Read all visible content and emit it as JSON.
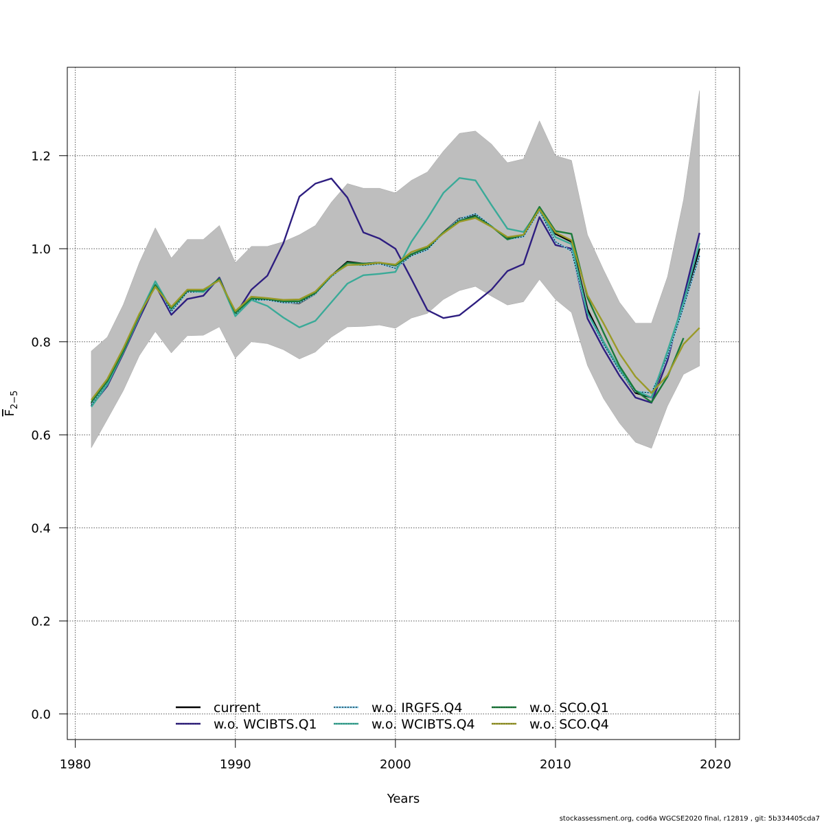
{
  "chart_data": {
    "type": "line",
    "title": "",
    "xlabel": "Years",
    "ylabel": "F̄ 2−5",
    "ylabel_main": "F",
    "ylabel_sub": "2−5",
    "xlim": [
      1979.5,
      2021.5
    ],
    "ylim": [
      -0.055,
      1.39
    ],
    "xticks": [
      1980,
      1990,
      2000,
      2010,
      2020
    ],
    "xtick_labels": [
      "1980",
      "1990",
      "2000",
      "2010",
      "2020"
    ],
    "yticks": [
      0.0,
      0.2,
      0.4,
      0.6,
      0.8,
      1.0,
      1.2
    ],
    "ytick_labels": [
      "0.0",
      "0.2",
      "0.4",
      "0.6",
      "0.8",
      "1.0",
      "1.2"
    ],
    "grid": true,
    "legend_position": "bottom-center",
    "x": [
      1981,
      1982,
      1983,
      1984,
      1985,
      1986,
      1987,
      1988,
      1989,
      1990,
      1991,
      1992,
      1993,
      1994,
      1995,
      1996,
      1997,
      1998,
      1999,
      2000,
      2001,
      2002,
      2003,
      2004,
      2005,
      2006,
      2007,
      2008,
      2009,
      2010,
      2011,
      2012,
      2013,
      2014,
      2015,
      2016,
      2017,
      2018,
      2019
    ],
    "band": {
      "name": "confidence interval (current)",
      "color": "#bebebe",
      "lower": [
        0.572,
        0.633,
        0.695,
        0.77,
        0.822,
        0.776,
        0.813,
        0.814,
        0.832,
        0.765,
        0.8,
        0.796,
        0.783,
        0.763,
        0.778,
        0.81,
        0.832,
        0.833,
        0.836,
        0.829,
        0.851,
        0.861,
        0.891,
        0.91,
        0.919,
        0.898,
        0.879,
        0.886,
        0.934,
        0.891,
        0.863,
        0.749,
        0.678,
        0.625,
        0.584,
        0.571,
        0.662,
        0.73,
        0.748
      ],
      "upper": [
        0.78,
        0.81,
        0.88,
        0.97,
        1.045,
        0.98,
        1.02,
        1.02,
        1.05,
        0.97,
        1.005,
        1.005,
        1.015,
        1.03,
        1.05,
        1.1,
        1.14,
        1.13,
        1.13,
        1.12,
        1.147,
        1.165,
        1.21,
        1.248,
        1.253,
        1.225,
        1.185,
        1.193,
        1.275,
        1.2,
        1.19,
        1.03,
        0.955,
        0.885,
        0.84,
        0.84,
        0.94,
        1.105,
        1.34
      ]
    },
    "series": [
      {
        "name": "current",
        "color": "#000000",
        "dash": "solid",
        "values": [
          0.667,
          0.712,
          0.78,
          0.855,
          0.925,
          0.868,
          0.909,
          0.909,
          0.935,
          0.86,
          0.892,
          0.892,
          0.885,
          0.883,
          0.903,
          0.942,
          0.972,
          0.968,
          0.97,
          0.964,
          0.988,
          1.002,
          1.035,
          1.065,
          1.072,
          1.048,
          1.022,
          1.028,
          1.088,
          1.032,
          1.015,
          0.87,
          0.8,
          0.74,
          0.69,
          0.68,
          0.775,
          0.88,
          1.0
        ]
      },
      {
        "name": "w.o. WCIBTS.Q1",
        "color": "#2e1e80",
        "dash": "solid",
        "values": [
          0.662,
          0.705,
          0.775,
          0.85,
          0.922,
          0.858,
          0.892,
          0.899,
          0.938,
          0.858,
          0.912,
          0.942,
          1.012,
          1.112,
          1.14,
          1.151,
          1.11,
          1.035,
          1.022,
          1.0,
          0.935,
          0.868,
          0.851,
          0.857,
          0.884,
          0.912,
          0.952,
          0.967,
          1.068,
          1.008,
          1.0,
          0.85,
          0.785,
          0.727,
          0.68,
          0.669,
          0.76,
          0.895,
          1.034
        ]
      },
      {
        "name": "w.o. IRGFS.Q4",
        "color": "#7ec8e8",
        "dash": "dotted",
        "values": [
          0.664,
          0.71,
          0.778,
          0.855,
          0.928,
          0.865,
          0.907,
          0.907,
          0.935,
          0.858,
          0.89,
          0.89,
          0.884,
          0.884,
          0.903,
          0.94,
          0.966,
          0.964,
          0.968,
          0.958,
          0.985,
          0.998,
          1.034,
          1.064,
          1.075,
          1.049,
          1.02,
          1.026,
          1.082,
          1.015,
          0.995,
          0.862,
          0.795,
          0.738,
          0.693,
          0.69,
          0.77,
          0.875,
          0.985
        ]
      },
      {
        "name": "w.o. WCIBTS.Q4",
        "color": "#3aaa98",
        "dash": "solid",
        "values": [
          0.66,
          0.708,
          0.778,
          0.858,
          0.93,
          0.87,
          0.91,
          0.907,
          0.935,
          0.855,
          0.89,
          0.877,
          0.852,
          0.831,
          0.845,
          0.885,
          0.925,
          0.943,
          0.946,
          0.95,
          1.015,
          1.065,
          1.12,
          1.152,
          1.147,
          1.094,
          1.043,
          1.036,
          1.085,
          1.025,
          1.01,
          0.862,
          0.8,
          0.742,
          0.695,
          0.68,
          0.78,
          0.885,
          1.012
        ]
      },
      {
        "name": "w.o. SCO.Q1",
        "color": "#1a7a3a",
        "dash": "solid",
        "values": [
          0.67,
          0.715,
          0.78,
          0.857,
          0.922,
          0.872,
          0.91,
          0.91,
          0.935,
          0.862,
          0.893,
          0.892,
          0.887,
          0.887,
          0.905,
          0.942,
          0.97,
          0.968,
          0.97,
          0.964,
          0.988,
          1.002,
          1.035,
          1.06,
          1.07,
          1.048,
          1.02,
          1.03,
          1.09,
          1.038,
          1.032,
          0.895,
          0.82,
          0.748,
          0.695,
          0.67,
          0.725,
          0.808,
          null
        ]
      },
      {
        "name": "w.o. SCO.Q4",
        "color": "#9a9a28",
        "dash": "solid",
        "values": [
          0.675,
          0.72,
          0.786,
          0.86,
          0.918,
          0.875,
          0.912,
          0.912,
          0.932,
          0.866,
          0.897,
          0.894,
          0.89,
          0.891,
          0.908,
          0.943,
          0.965,
          0.966,
          0.97,
          0.966,
          0.993,
          1.005,
          1.033,
          1.058,
          1.066,
          1.047,
          1.025,
          1.03,
          1.085,
          1.035,
          1.018,
          0.9,
          0.84,
          0.775,
          0.725,
          0.69,
          0.728,
          0.795,
          0.83
        ]
      }
    ],
    "legend": [
      {
        "label": "current",
        "color": "#000000"
      },
      {
        "label": "w.o. WCIBTS.Q1",
        "color": "#2e1e80"
      },
      {
        "label": "w.o. IRGFS.Q4",
        "color": "#7ec8e8"
      },
      {
        "label": "w.o. WCIBTS.Q4",
        "color": "#3aaa98"
      },
      {
        "label": "w.o. SCO.Q1",
        "color": "#1a7a3a"
      },
      {
        "label": "w.o. SCO.Q4",
        "color": "#9a9a28"
      }
    ]
  },
  "footer": "stockassessment.org, cod6a  WGCSE2020  final, r12819 , git: 5b334405cda7"
}
